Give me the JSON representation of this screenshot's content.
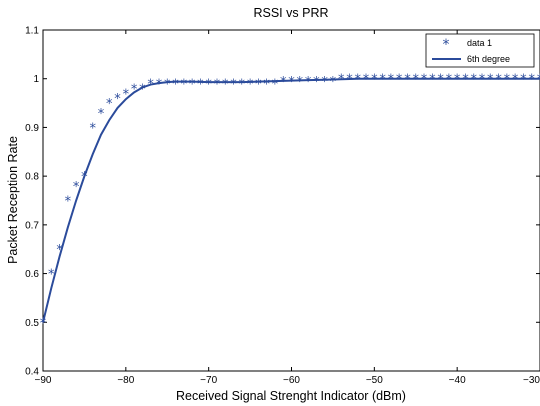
{
  "chart_data": {
    "type": "scatter",
    "title": "RSSI vs PRR",
    "xlabel": "Received Signal Strenght Indicator (dBm)",
    "ylabel": "Packet Reception Rate",
    "xlim": [
      -90,
      -30
    ],
    "ylim": [
      0.4,
      1.1
    ],
    "xticks": [
      -90,
      -80,
      -70,
      -60,
      -50,
      -40,
      -30
    ],
    "yticks": [
      0.4,
      0.5,
      0.6,
      0.7,
      0.8,
      0.9,
      1,
      1.1
    ],
    "xtick_labels": [
      "−90",
      "−80",
      "−70",
      "−60",
      "−50",
      "−40",
      "−30"
    ],
    "ytick_labels": [
      "0.4",
      "0.5",
      "0.6",
      "0.7",
      "0.8",
      "0.9",
      "1",
      "1.1"
    ],
    "grid": false,
    "legend_position": "top-right",
    "color": "#2b4b9b",
    "series": [
      {
        "name": "data 1",
        "kind": "marker",
        "marker": "*",
        "x": [
          -90,
          -89,
          -88,
          -87,
          -86,
          -85,
          -84,
          -83,
          -82,
          -81,
          -80,
          -79,
          -78,
          -77,
          -76,
          -75,
          -74,
          -73,
          -72,
          -71,
          -70,
          -69,
          -68,
          -67,
          -66,
          -65,
          -64,
          -63,
          -62,
          -61,
          -60,
          -59,
          -58,
          -57,
          -56,
          -55,
          -54,
          -53,
          -52,
          -51,
          -50,
          -49,
          -48,
          -47,
          -46,
          -45,
          -44,
          -43,
          -42,
          -41,
          -40,
          -39,
          -38,
          -37,
          -36,
          -35,
          -34,
          -33,
          -32,
          -31,
          -30
        ],
        "y": [
          0.5,
          0.6,
          0.65,
          0.75,
          0.78,
          0.8,
          0.9,
          0.93,
          0.95,
          0.96,
          0.97,
          0.98,
          0.98,
          0.99,
          0.99,
          0.99,
          0.99,
          0.99,
          0.99,
          0.99,
          0.99,
          0.99,
          0.99,
          0.99,
          0.99,
          0.99,
          0.99,
          0.99,
          0.99,
          0.995,
          0.995,
          0.995,
          0.995,
          0.995,
          0.995,
          0.995,
          1,
          1,
          1,
          1,
          1,
          1,
          1,
          1,
          1,
          1,
          1,
          1,
          1,
          1,
          1,
          1,
          1,
          1,
          1,
          1,
          1,
          1,
          1,
          1,
          1
        ]
      },
      {
        "name": "6th degree",
        "kind": "line",
        "x": [
          -90,
          -89,
          -88,
          -87,
          -86,
          -85,
          -84,
          -83,
          -82,
          -81,
          -80,
          -79,
          -78,
          -77,
          -76,
          -75,
          -74,
          -72,
          -70,
          -68,
          -66,
          -64,
          -62,
          -60,
          -58,
          -56,
          -54,
          -52,
          -50,
          -45,
          -40,
          -35,
          -30
        ],
        "y": [
          0.5,
          0.57,
          0.635,
          0.695,
          0.75,
          0.8,
          0.845,
          0.885,
          0.915,
          0.94,
          0.958,
          0.972,
          0.982,
          0.988,
          0.991,
          0.993,
          0.994,
          0.994,
          0.993,
          0.993,
          0.993,
          0.994,
          0.995,
          0.996,
          0.997,
          0.998,
          0.999,
          1,
          1,
          1,
          1,
          1,
          1
        ]
      }
    ]
  }
}
